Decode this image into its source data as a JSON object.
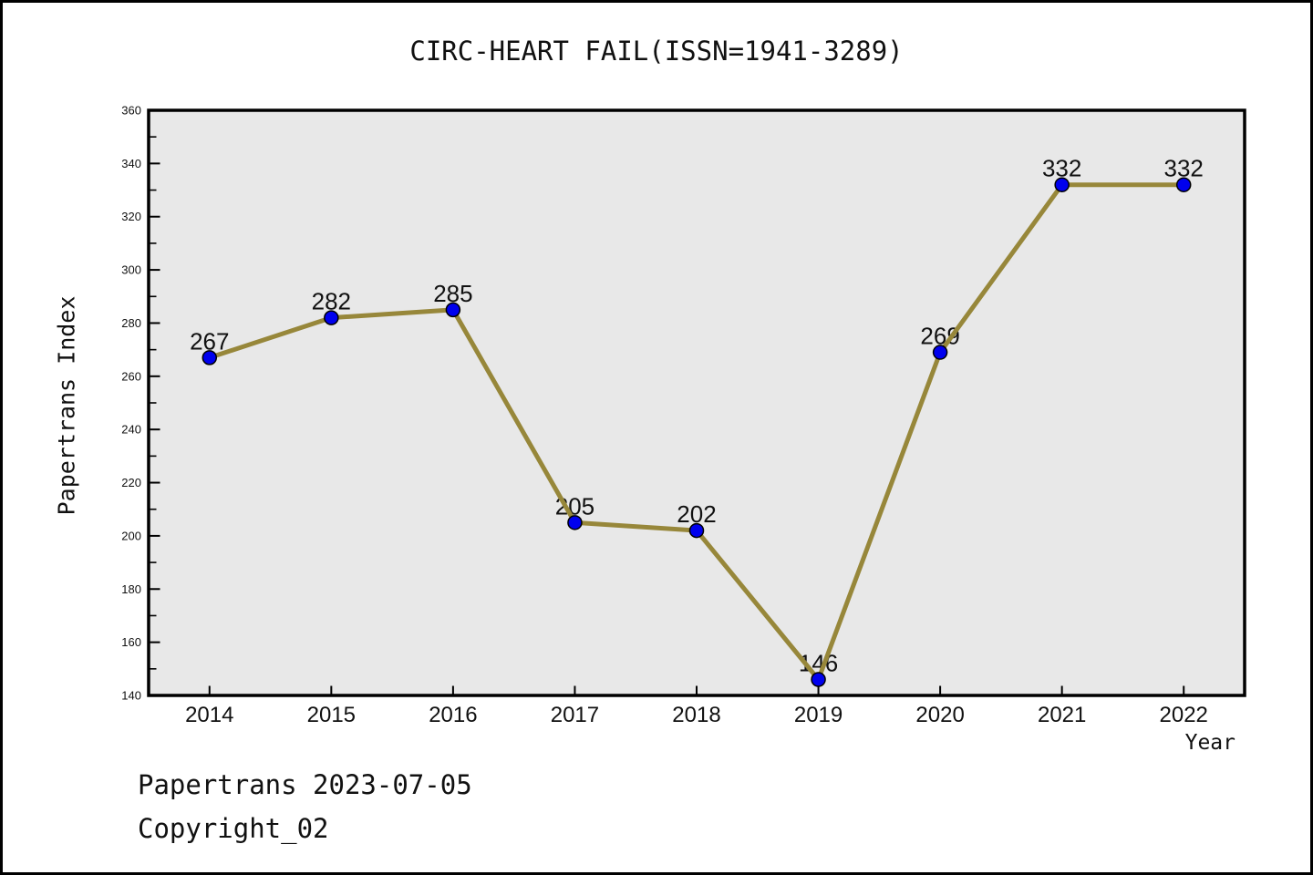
{
  "chart_data": {
    "type": "line",
    "title": "CIRC-HEART FAIL(ISSN=1941-3289)",
    "xlabel": "Year",
    "ylabel": "Papertrans Index",
    "x": [
      2014,
      2015,
      2016,
      2017,
      2018,
      2019,
      2020,
      2021,
      2022
    ],
    "values": [
      267,
      282,
      285,
      205,
      202,
      146,
      269,
      332,
      332
    ],
    "point_labels": [
      "267",
      "282",
      "285",
      "205",
      "202",
      "146",
      "269",
      "332",
      "332"
    ],
    "xlim": [
      2013.5,
      2022.5
    ],
    "ylim": [
      140,
      360
    ],
    "y_major_step": 20,
    "y_minor_step": 10,
    "grid": false,
    "legend_position": "none",
    "colors": {
      "line": "#97873a",
      "marker_fill": "#0000ee",
      "marker_edge": "#000000",
      "plot_background": "#e8e8e8",
      "axis": "#000000",
      "text": "#111111"
    }
  },
  "footer": {
    "line1": "Papertrans 2023-07-05",
    "line2": "Copyright_02"
  }
}
